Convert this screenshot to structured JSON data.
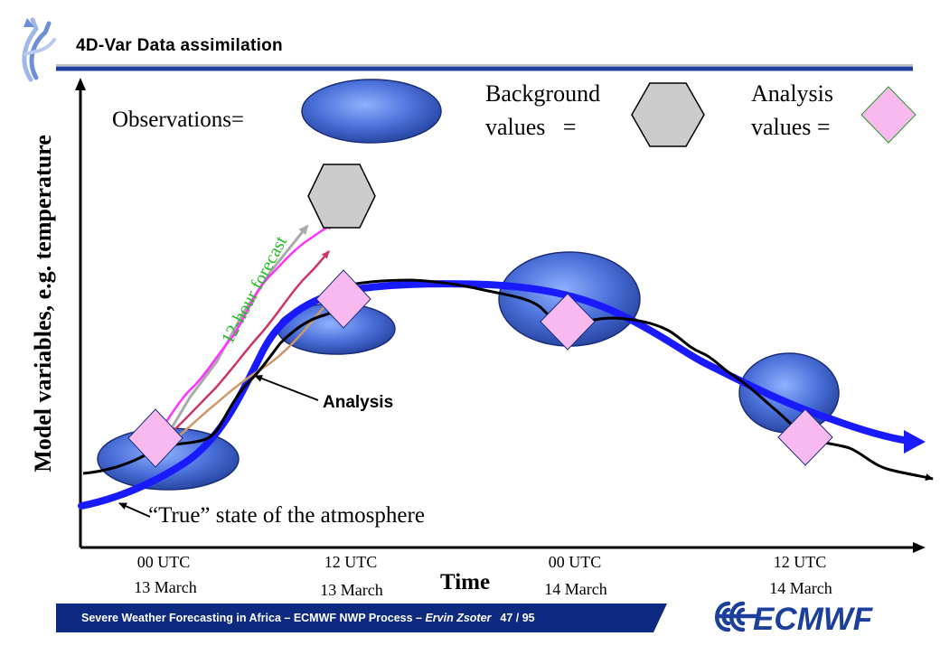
{
  "header": {
    "title": "4D-Var Data assimilation"
  },
  "legend": {
    "observations": "Observations=",
    "background_line1": "Background",
    "background_line2": "values   =",
    "analysis_line1": "Analysis",
    "analysis_line2": "values =",
    "observation_color": "#4a6fd8",
    "background_color": "#cccccc",
    "analysis_color": "#f7b9ee"
  },
  "diagram": {
    "y_axis_label": "Model variables, e.g. temperature",
    "x_axis_label": "Time",
    "forecast_label": "12-hour forecast",
    "analysis_label": "Analysis",
    "truth_label": "“True” state of the atmosphere",
    "ticks": [
      {
        "line1": "00 UTC",
        "line2": "13 March"
      },
      {
        "line1": "12 UTC",
        "line2": "13 March"
      },
      {
        "line1": "00 UTC",
        "line2": "14 March"
      },
      {
        "line1": "12 UTC",
        "line2": "14 March"
      }
    ],
    "truth_color": "#1a1aff",
    "forecast_colors": [
      "#aaaaaa",
      "#ff33ff",
      "#cc3366",
      "#cc9966"
    ],
    "forecast_label_color": "#22bb22"
  },
  "footer": {
    "course": "Severe Weather Forecasting in Africa – ECMWF NWP Process – ",
    "author": "Ervin Zsoter",
    "page": "47 / 95",
    "logo_text": "ECMWF",
    "bar_color": "#0d2a80",
    "logo_color": "#1c3f9c"
  }
}
